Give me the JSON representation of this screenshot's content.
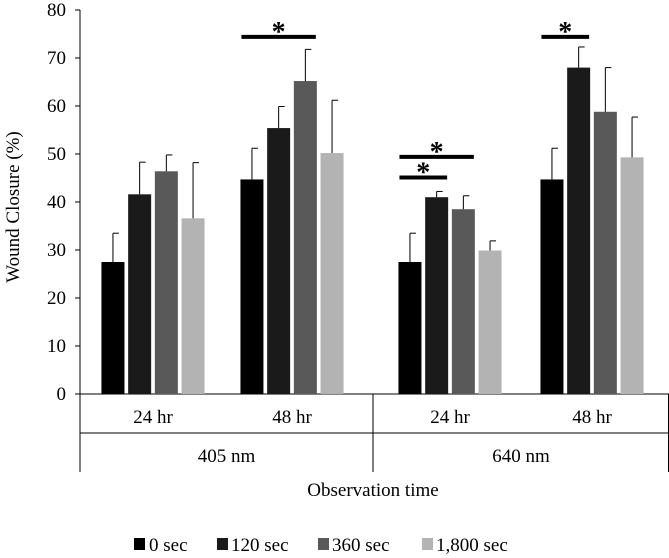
{
  "chart_data": {
    "type": "bar",
    "ylabel": "Wound Closure (%)",
    "xlabel": "Observation time",
    "ylim": [
      0,
      80
    ],
    "yticks": [
      0,
      10,
      20,
      30,
      40,
      50,
      60,
      70,
      80
    ],
    "groups": [
      {
        "label": "405 nm",
        "categories": [
          "24 hr",
          "48 hr"
        ]
      },
      {
        "label": "640 nm",
        "categories": [
          "24 hr",
          "48 hr"
        ]
      }
    ],
    "categories": [
      "24 hr",
      "48 hr",
      "24 hr",
      "48 hr"
    ],
    "series": [
      {
        "name": "0 sec",
        "color": "#000000",
        "values": [
          27.5,
          44.7,
          27.5,
          44.7
        ],
        "errors": [
          6.0,
          6.5,
          6.0,
          6.5
        ]
      },
      {
        "name": "120 sec",
        "color": "#1a1a1a",
        "values": [
          41.6,
          55.4,
          41.0,
          68.0
        ],
        "errors": [
          6.7,
          4.5,
          1.2,
          4.3
        ]
      },
      {
        "name": "360 sec",
        "color": "#595959",
        "values": [
          46.4,
          65.2,
          38.5,
          58.8
        ],
        "errors": [
          3.4,
          6.6,
          2.8,
          9.2
        ]
      },
      {
        "name": "1,800 sec",
        "color": "#b3b3b3",
        "values": [
          36.6,
          50.2,
          29.9,
          49.3
        ],
        "errors": [
          11.6,
          11.0,
          2.0,
          8.4
        ]
      }
    ],
    "significance": [
      {
        "label": "*",
        "category_index": 1,
        "from_series": 0,
        "to_series": 2,
        "level": 74.4
      },
      {
        "label": "*",
        "category_index": 2,
        "from_series": 0,
        "to_series": 1,
        "level": 45.1
      },
      {
        "label": "*",
        "category_index": 2,
        "from_series": 0,
        "to_series": 2,
        "level": 49.4
      },
      {
        "label": "*",
        "category_index": 3,
        "from_series": 0,
        "to_series": 1,
        "level": 74.4
      }
    ],
    "legend_position": "bottom"
  }
}
